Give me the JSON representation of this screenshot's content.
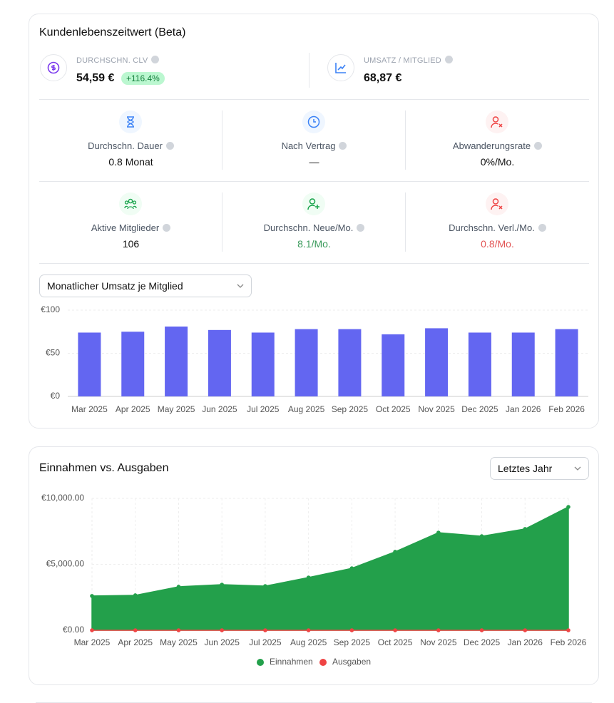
{
  "clv": {
    "title": "Kundenlebenszeitwert (Beta)",
    "top": [
      {
        "label": "DURCHSCHN. CLV",
        "value": "54,59 €",
        "badge": "+116.4%"
      },
      {
        "label": "UMSATZ / MITGLIED",
        "value": "68,87 €"
      }
    ],
    "stats": [
      {
        "label": "Durchschn. Dauer",
        "value": "0.8 Monat"
      },
      {
        "label": "Nach Vertrag",
        "value": "—"
      },
      {
        "label": "Abwanderungsrate",
        "value": "0%/Mo."
      },
      {
        "label": "Aktive Mitglieder",
        "value": "106"
      },
      {
        "label": "Durchschn. Neue/Mo.",
        "value": "8.1/Mo."
      },
      {
        "label": "Durchschn. Verl./Mo.",
        "value": "0.8/Mo."
      }
    ],
    "select": "Monatlicher Umsatz je Mitglied"
  },
  "finance": {
    "select": "Letztes Jahr"
  },
  "chart_data": [
    {
      "type": "bar",
      "categories": [
        "Mar 2025",
        "Apr 2025",
        "May 2025",
        "Jun 2025",
        "Jul 2025",
        "Aug 2025",
        "Sep 2025",
        "Oct 2025",
        "Nov 2025",
        "Dec 2025",
        "Jan 2026",
        "Feb 2026"
      ],
      "values": [
        74,
        75,
        81,
        77,
        74,
        78,
        78,
        72,
        79,
        74,
        74,
        78
      ],
      "color": "#6366f1",
      "ylim": [
        0,
        100
      ],
      "yticks": [
        {
          "value": 0,
          "label": "€0"
        },
        {
          "value": 50,
          "label": "€50"
        },
        {
          "value": 100,
          "label": "€100"
        }
      ],
      "grid": true
    },
    {
      "type": "area",
      "title": "Einnahmen vs. Ausgaben",
      "categories": [
        "Mar 2025",
        "Apr 2025",
        "May 2025",
        "Jun 2025",
        "Jul 2025",
        "Aug 2025",
        "Sep 2025",
        "Oct 2025",
        "Nov 2025",
        "Dec 2025",
        "Jan 2026",
        "Feb 2026"
      ],
      "series": [
        {
          "name": "Einnahmen",
          "color": "#23a04b",
          "values": [
            2600,
            2650,
            3300,
            3460,
            3350,
            4000,
            4700,
            5950,
            7400,
            7130,
            7680,
            9350
          ]
        },
        {
          "name": "Ausgaben",
          "color": "#ef4444",
          "values": [
            0,
            0,
            0,
            0,
            0,
            0,
            0,
            0,
            0,
            0,
            0,
            0
          ]
        }
      ],
      "ylim": [
        0,
        10000
      ],
      "yticks": [
        {
          "value": 0,
          "label": "€0.00"
        },
        {
          "value": 5000,
          "label": "€5,000.00"
        },
        {
          "value": 10000,
          "label": "€10,000.00"
        }
      ],
      "grid": true
    }
  ]
}
